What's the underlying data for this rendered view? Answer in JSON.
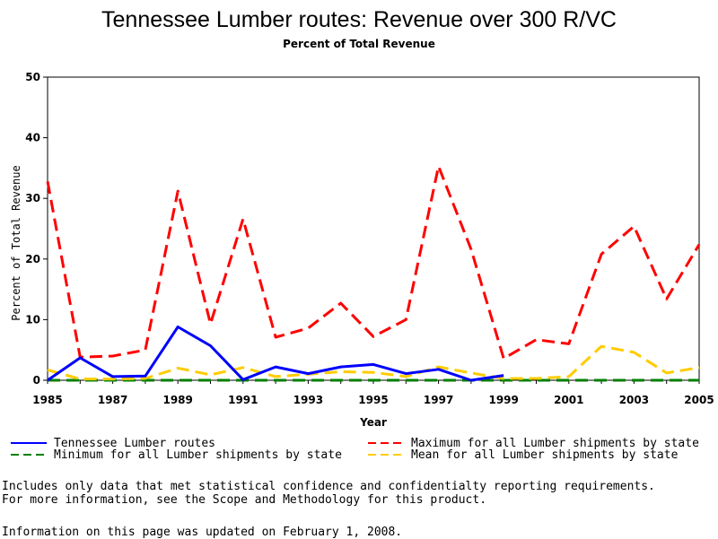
{
  "chart_data": {
    "type": "line",
    "title": "Tennessee Lumber routes: Revenue over 300 R/VC",
    "subtitle": "Percent of Total Revenue",
    "xlabel": "Year",
    "ylabel": "Percent of Total Revenue",
    "xlim": [
      1985,
      2005
    ],
    "ylim": [
      0,
      50
    ],
    "xticks": [
      1985,
      1987,
      1989,
      1991,
      1993,
      1995,
      1997,
      1999,
      2001,
      2003,
      2005
    ],
    "yticks": [
      0,
      10,
      20,
      30,
      40,
      50
    ],
    "grid": false,
    "legend_position": "bottom",
    "x": [
      1985,
      1986,
      1987,
      1988,
      1989,
      1990,
      1991,
      1992,
      1993,
      1994,
      1995,
      1996,
      1997,
      1998,
      1999,
      2000,
      2001,
      2002,
      2003,
      2004,
      2005
    ],
    "series": [
      {
        "name": "Tennessee Lumber routes",
        "color": "#0000ff",
        "style": "solid",
        "values": [
          0.0,
          3.7,
          0.6,
          0.7,
          8.8,
          5.7,
          0.1,
          2.2,
          1.1,
          2.2,
          2.6,
          1.1,
          1.8,
          0.0,
          0.8,
          null,
          null,
          null,
          null,
          null,
          null
        ]
      },
      {
        "name": "Maximum for all Lumber shipments by state",
        "color": "#ff0000",
        "style": "dashed",
        "values": [
          32.8,
          3.8,
          4.0,
          5.0,
          31.2,
          9.3,
          26.6,
          7.1,
          8.6,
          12.7,
          7.2,
          10.0,
          35.3,
          21.6,
          3.6,
          6.7,
          6.0,
          20.8,
          25.4,
          13.4,
          22.4
        ]
      },
      {
        "name": "Minimum for all Lumber shipments by state",
        "color": "#008000",
        "style": "dashed",
        "values": [
          0.0,
          0.0,
          0.0,
          0.0,
          0.0,
          0.0,
          0.0,
          0.0,
          0.0,
          0.0,
          0.0,
          0.0,
          0.0,
          0.0,
          0.0,
          0.0,
          0.0,
          0.0,
          0.0,
          0.0,
          0.0
        ]
      },
      {
        "name": "Mean for all Lumber shipments by state",
        "color": "#ffcc00",
        "style": "dashed",
        "values": [
          1.7,
          0.2,
          0.2,
          0.3,
          2.0,
          0.9,
          2.1,
          0.6,
          1.0,
          1.4,
          1.3,
          0.6,
          2.2,
          1.2,
          0.3,
          0.3,
          0.6,
          5.6,
          4.6,
          1.2,
          2.1
        ]
      }
    ]
  },
  "notes": {
    "line1": "Includes only data that met statistical confidence and confidentialty reporting requirements.",
    "line2": "For more information, see the Scope and Methodology for this product.",
    "updated": "Information on this page was updated on February 1, 2008."
  }
}
